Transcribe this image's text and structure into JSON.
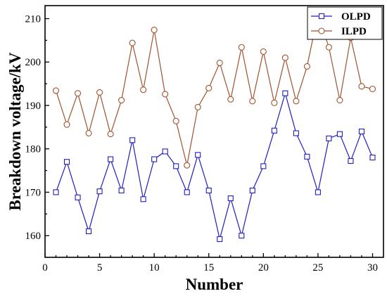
{
  "chart_data": {
    "type": "line",
    "xlabel": "Number",
    "ylabel": "Breakdown voltage/kV",
    "xlim": [
      0,
      31
    ],
    "ylim": [
      155,
      213
    ],
    "xticks": [
      0,
      5,
      10,
      15,
      20,
      25,
      30
    ],
    "yticks": [
      160,
      170,
      180,
      190,
      200,
      210
    ],
    "legend_position": "top-right",
    "grid": false,
    "x": [
      1,
      2,
      3,
      4,
      5,
      6,
      7,
      8,
      9,
      10,
      11,
      12,
      13,
      14,
      15,
      16,
      17,
      18,
      19,
      20,
      21,
      22,
      23,
      24,
      25,
      26,
      27,
      28,
      29,
      30
    ],
    "series": [
      {
        "name": "OLPD",
        "color": "#1f1fbf",
        "marker": "square",
        "values": [
          170.0,
          177.0,
          168.8,
          161.0,
          170.2,
          177.6,
          170.4,
          182.0,
          168.4,
          177.6,
          179.4,
          176.0,
          170.0,
          178.6,
          170.4,
          159.2,
          168.6,
          160.0,
          170.4,
          176.0,
          184.2,
          192.8,
          183.6,
          178.2,
          170.0,
          182.4,
          183.4,
          177.2,
          184.0,
          178.0
        ]
      },
      {
        "name": "ILPD",
        "color": "#a0522d",
        "marker": "circle",
        "values": [
          193.4,
          185.6,
          192.8,
          183.6,
          193.0,
          183.4,
          191.2,
          204.4,
          193.6,
          207.4,
          192.6,
          186.4,
          176.2,
          189.6,
          194.0,
          199.8,
          191.4,
          203.4,
          191.0,
          202.4,
          190.6,
          201.0,
          191.0,
          199.0,
          211.0,
          203.4,
          191.2,
          205.6,
          194.4,
          193.8
        ]
      }
    ]
  }
}
